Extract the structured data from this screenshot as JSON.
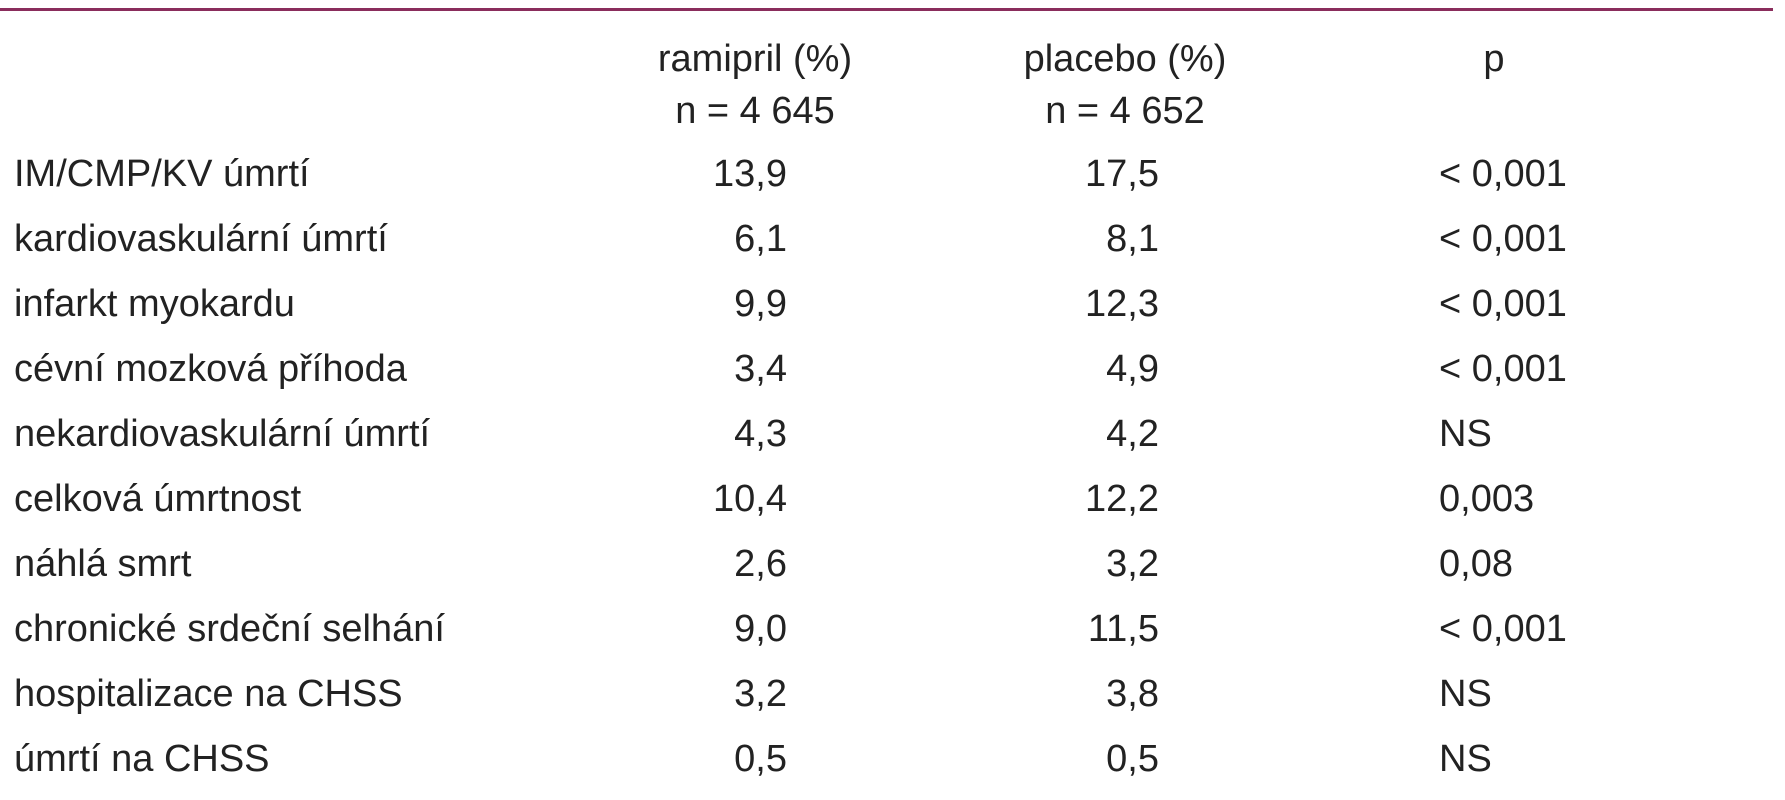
{
  "header": {
    "columns": [
      {
        "name": "ramipril (%)",
        "n": "n = 4 645"
      },
      {
        "name": "placebo (%)",
        "n": "n = 4 652"
      },
      {
        "name": "p"
      }
    ]
  },
  "table": {
    "rows": [
      [
        "IM/CMP/KV úmrtí",
        "13,9",
        "17,5",
        "< 0,001"
      ],
      [
        "kardiovaskulární úmrtí",
        "6,1",
        "8,1",
        "< 0,001"
      ],
      [
        "infarkt myokardu",
        "9,9",
        "12,3",
        "< 0,001"
      ],
      [
        "cévní mozková příhoda",
        "3,4",
        "4,9",
        "< 0,001"
      ],
      [
        "nekardiovaskulární úmrtí",
        "4,3",
        "4,2",
        "NS"
      ],
      [
        "celková úmrtnost",
        "10,4",
        "12,2",
        "0,003"
      ],
      [
        "náhlá smrt",
        "2,6",
        "3,2",
        "0,08"
      ],
      [
        "chronické srdeční selhání",
        "9,0",
        "11,5",
        "< 0,001"
      ],
      [
        "hospitalizace na CHSS",
        "3,2",
        "3,8",
        "NS"
      ],
      [
        "úmrtí na CHSS",
        "0,5",
        "0,5",
        "NS"
      ]
    ]
  }
}
